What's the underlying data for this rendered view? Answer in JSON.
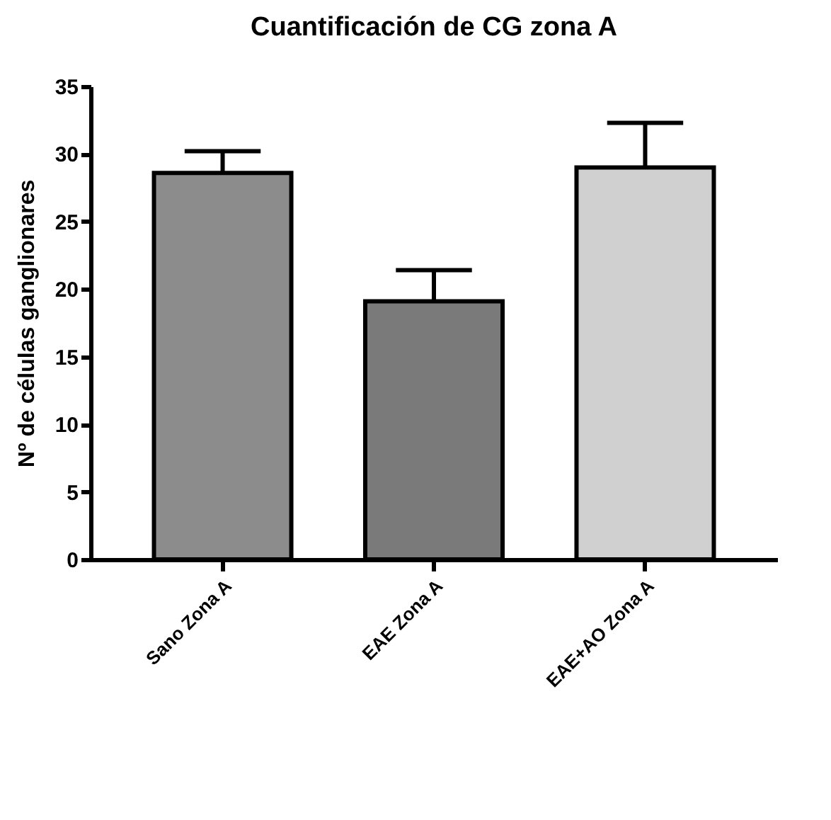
{
  "chart_data": {
    "type": "bar",
    "title": "Cuantificación de CG zona A",
    "ylabel": "Nº de células ganglionares",
    "categories": [
      "Sano Zona A",
      "EAE Zona A",
      "EAE+AO Zona A"
    ],
    "values": [
      28.6,
      19.1,
      29.0
    ],
    "errors": [
      [
        28.6,
        30.2
      ],
      [
        19.1,
        21.4
      ],
      [
        29.0,
        32.3
      ]
    ],
    "colors": [
      "#8c8c8c",
      "#7a7a7a",
      "#d0d0d0"
    ],
    "ylim": [
      0,
      35
    ],
    "yticks": [
      0,
      5,
      10,
      15,
      20,
      25,
      30,
      35
    ],
    "grid": false
  }
}
